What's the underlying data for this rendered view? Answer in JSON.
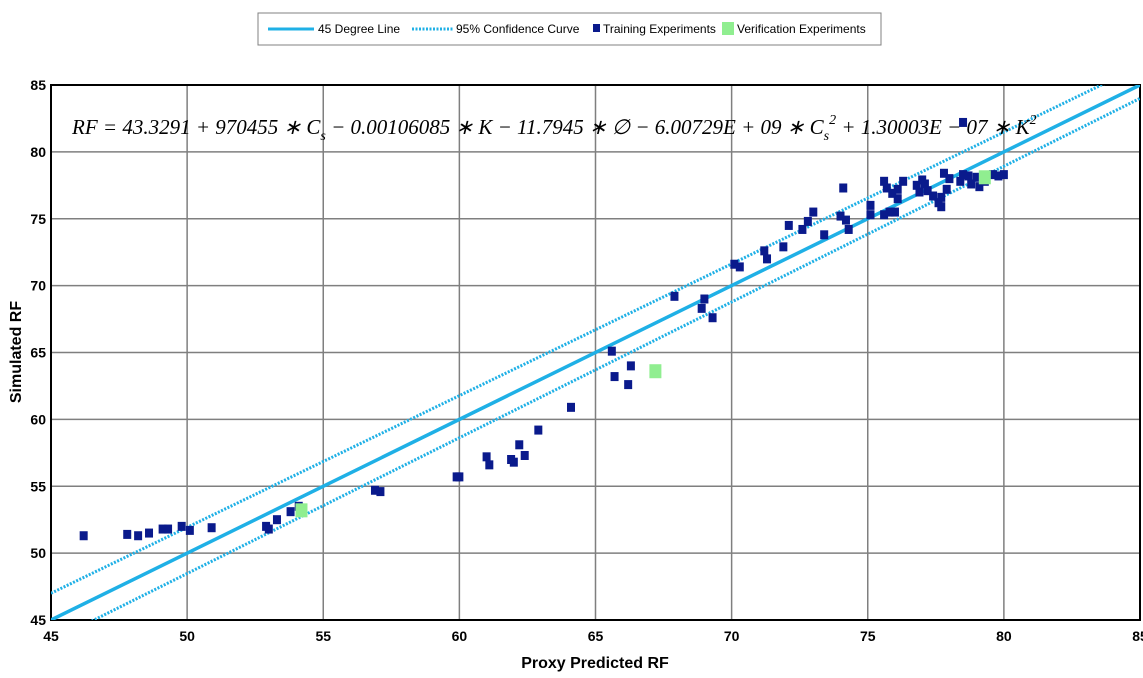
{
  "chart_data": {
    "type": "scatter",
    "title": "",
    "xlabel": "Proxy Predicted RF",
    "ylabel": "Simulated RF",
    "xlim": [
      45,
      85
    ],
    "ylim": [
      45,
      85
    ],
    "xticks": [
      45,
      50,
      55,
      60,
      65,
      70,
      75,
      80,
      85
    ],
    "yticks": [
      45,
      50,
      55,
      60,
      65,
      70,
      75,
      80,
      85
    ],
    "grid": true,
    "legend_position": "top-center",
    "equation_text": "RF = 43.3291 + 970455 * C_s − 0.00106085 * K − 11.7945 * ∅ − 6.00729E + 09 * C_s^2 + 1.30003E − 07 * K^2",
    "colors": {
      "line": "#1fb0e6",
      "confidence": "#1fb0e6",
      "training": "#0a1a8c",
      "verification": "#90ee90",
      "grid": "#7f7f7f"
    },
    "series": [
      {
        "name": "45 Degree Line",
        "kind": "line",
        "x": [
          45,
          85
        ],
        "y": [
          45,
          85
        ]
      },
      {
        "name": "95% Confidence Curve",
        "kind": "dashed-line",
        "x": [
          45,
          85
        ],
        "y": [
          47,
          86.4
        ]
      },
      {
        "name": "95% Confidence Curve",
        "kind": "dashed-line",
        "x": [
          45,
          85
        ],
        "y": [
          43.4,
          84
        ]
      },
      {
        "name": "Training Experiments",
        "kind": "points",
        "points": [
          [
            46.2,
            51.3
          ],
          [
            47.8,
            51.4
          ],
          [
            48.2,
            51.3
          ],
          [
            48.6,
            51.5
          ],
          [
            49.1,
            51.8
          ],
          [
            49.3,
            51.8
          ],
          [
            49.8,
            52.0
          ],
          [
            50.1,
            51.7
          ],
          [
            50.9,
            51.9
          ],
          [
            52.9,
            52.0
          ],
          [
            53.0,
            51.8
          ],
          [
            53.3,
            52.5
          ],
          [
            53.8,
            53.1
          ],
          [
            54.1,
            53.5
          ],
          [
            56.9,
            54.7
          ],
          [
            57.1,
            54.6
          ],
          [
            59.9,
            55.7
          ],
          [
            60.0,
            55.7
          ],
          [
            61.0,
            57.2
          ],
          [
            61.1,
            56.6
          ],
          [
            61.9,
            57.0
          ],
          [
            62.0,
            56.8
          ],
          [
            62.2,
            58.1
          ],
          [
            62.4,
            57.3
          ],
          [
            62.9,
            59.2
          ],
          [
            64.1,
            60.9
          ],
          [
            65.6,
            65.1
          ],
          [
            65.7,
            63.2
          ],
          [
            66.2,
            62.6
          ],
          [
            66.3,
            64.0
          ],
          [
            67.9,
            69.2
          ],
          [
            68.9,
            68.3
          ],
          [
            69.0,
            69.0
          ],
          [
            69.3,
            67.6
          ],
          [
            70.1,
            71.6
          ],
          [
            70.3,
            71.4
          ],
          [
            71.2,
            72.6
          ],
          [
            71.3,
            72.0
          ],
          [
            71.9,
            72.9
          ],
          [
            72.1,
            74.5
          ],
          [
            72.6,
            74.2
          ],
          [
            72.8,
            74.8
          ],
          [
            73.0,
            75.5
          ],
          [
            73.4,
            73.8
          ],
          [
            74.0,
            75.2
          ],
          [
            74.1,
            77.3
          ],
          [
            74.2,
            74.9
          ],
          [
            74.3,
            74.2
          ],
          [
            75.1,
            76.0
          ],
          [
            75.1,
            75.3
          ],
          [
            75.6,
            77.8
          ],
          [
            75.6,
            75.3
          ],
          [
            75.7,
            77.3
          ],
          [
            75.8,
            75.5
          ],
          [
            75.9,
            76.9
          ],
          [
            76.0,
            75.5
          ],
          [
            76.1,
            76.5
          ],
          [
            76.1,
            77.2
          ],
          [
            76.3,
            77.8
          ],
          [
            76.8,
            77.5
          ],
          [
            76.9,
            77.0
          ],
          [
            77.0,
            77.9
          ],
          [
            77.1,
            77.6
          ],
          [
            77.2,
            77.1
          ],
          [
            77.4,
            76.7
          ],
          [
            77.6,
            76.2
          ],
          [
            77.7,
            75.9
          ],
          [
            77.7,
            76.6
          ],
          [
            77.8,
            78.4
          ],
          [
            77.9,
            77.2
          ],
          [
            78.0,
            78.0
          ],
          [
            78.4,
            77.8
          ],
          [
            78.5,
            78.3
          ],
          [
            78.5,
            82.2
          ],
          [
            78.7,
            78.2
          ],
          [
            78.8,
            77.6
          ],
          [
            79.0,
            78.1
          ],
          [
            79.1,
            77.4
          ],
          [
            79.3,
            77.8
          ],
          [
            79.6,
            78.3
          ],
          [
            79.8,
            78.2
          ],
          [
            80.0,
            78.3
          ]
        ]
      },
      {
        "name": "Verification Experiments",
        "kind": "points",
        "points": [
          [
            54.2,
            53.2
          ],
          [
            67.2,
            63.6
          ],
          [
            79.3,
            78.1
          ]
        ]
      }
    ]
  }
}
